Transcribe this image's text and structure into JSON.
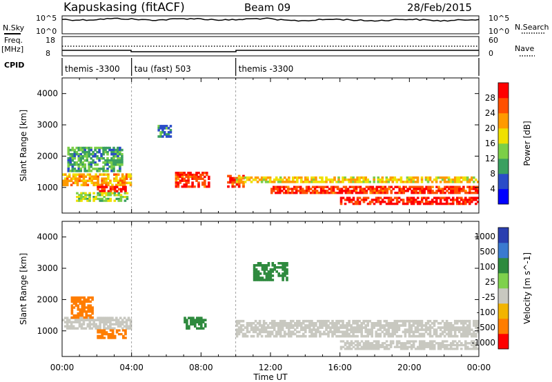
{
  "header": {
    "station": "Kapuskasing (fitACF)",
    "beam": "Beam 09",
    "date": "28/Feb/2015"
  },
  "strips": {
    "nsky_label": "N.Sky",
    "nsky_ticks": [
      "10^5",
      "10^0"
    ],
    "nsky_right_ticks": [
      "10^5",
      "10^0"
    ],
    "nsearch_label": "N.Search",
    "freq_label": "Freq.",
    "freq_unit": "[MHz]",
    "freq_ticks": [
      "18",
      "8"
    ],
    "nave_ticks": [
      "60",
      "0"
    ],
    "nave_label": "Nave",
    "cpid_label": "CPID",
    "cpid_segments": [
      {
        "label": "themis -3300",
        "start_hour": 0,
        "end_hour": 4
      },
      {
        "label": "tau (fast) 503",
        "start_hour": 4,
        "end_hour": 10
      },
      {
        "label": "themis -3300",
        "start_hour": 10,
        "end_hour": 24
      }
    ]
  },
  "colors": {
    "power_scale": [
      "#0000ff",
      "#2a4cc8",
      "#3aa060",
      "#7ccf48",
      "#f0e000",
      "#ff9a00",
      "#ff5000",
      "#ff0000"
    ],
    "velocity_scale": [
      "#2a3fb0",
      "#3a7ad0",
      "#2e8a3e",
      "#7ed14c",
      "#c8c8c0",
      "#f2b400",
      "#ff7d00",
      "#ff0000"
    ]
  },
  "chart_data": [
    {
      "type": "heatmap",
      "title": "",
      "xlabel": "Time UT",
      "ylabel": "Slant Range [km]",
      "xlim": [
        0,
        24
      ],
      "ylim": [
        180,
        4500
      ],
      "x_ticks": [
        "00:00",
        "04:00",
        "08:00",
        "12:00",
        "16:00",
        "20:00",
        "00:00"
      ],
      "y_ticks": [
        1000,
        2000,
        3000,
        4000
      ],
      "colorbar": {
        "label": "Power [dB]",
        "ticks": [
          "4",
          "8",
          "12",
          "16",
          "20",
          "24",
          "28"
        ],
        "range": [
          0,
          30
        ]
      },
      "regions": [
        {
          "t0": 0.0,
          "t1": 4.0,
          "r0": 1050,
          "r1": 1450,
          "value": 20
        },
        {
          "t0": 0.3,
          "t1": 3.5,
          "r0": 1500,
          "r1": 2300,
          "value": 10
        },
        {
          "t0": 2.0,
          "t1": 3.7,
          "r0": 850,
          "r1": 1050,
          "value": 28
        },
        {
          "t0": 0.8,
          "t1": 3.8,
          "r0": 550,
          "r1": 850,
          "value": 14
        },
        {
          "t0": 5.5,
          "t1": 6.3,
          "r0": 2600,
          "r1": 3000,
          "value": 8
        },
        {
          "t0": 6.5,
          "t1": 8.5,
          "r0": 1000,
          "r1": 1500,
          "value": 26
        },
        {
          "t0": 9.5,
          "t1": 10.5,
          "r0": 1000,
          "r1": 1400,
          "value": 26
        },
        {
          "t0": 10.0,
          "t1": 24.0,
          "r0": 1150,
          "r1": 1350,
          "value": 18
        },
        {
          "t0": 12.0,
          "t1": 24.0,
          "r0": 800,
          "r1": 1050,
          "value": 26
        },
        {
          "t0": 16.0,
          "t1": 24.0,
          "r0": 450,
          "r1": 700,
          "value": 28
        }
      ]
    },
    {
      "type": "heatmap",
      "title": "",
      "xlabel": "Time UT",
      "ylabel": "Slant Range [km]",
      "xlim": [
        0,
        24
      ],
      "ylim": [
        180,
        4500
      ],
      "x_ticks": [
        "00:00",
        "04:00",
        "08:00",
        "12:00",
        "16:00",
        "20:00",
        "00:00"
      ],
      "y_ticks": [
        1000,
        2000,
        3000,
        4000
      ],
      "colorbar": {
        "label": "Velocity [m s^-1]",
        "ticks": [
          "1000",
          "500",
          "100",
          "25",
          "-25",
          "-100",
          "-500",
          "-1000"
        ]
      },
      "regions": [
        {
          "t0": 0.0,
          "t1": 4.0,
          "r0": 1050,
          "r1": 1450,
          "value": 0
        },
        {
          "t0": 2.0,
          "t1": 3.7,
          "r0": 750,
          "r1": 1050,
          "value": -300
        },
        {
          "t0": 0.5,
          "t1": 1.8,
          "r0": 1400,
          "r1": 2100,
          "value": -150
        },
        {
          "t0": 7.0,
          "t1": 8.3,
          "r0": 1050,
          "r1": 1450,
          "value": 150
        },
        {
          "t0": 10.0,
          "t1": 24.0,
          "r0": 800,
          "r1": 1350,
          "value": 0
        },
        {
          "t0": 11.0,
          "t1": 13.0,
          "r0": 2600,
          "r1": 3200,
          "value": 150
        },
        {
          "t0": 16.0,
          "t1": 24.0,
          "r0": 400,
          "r1": 700,
          "value": 0
        }
      ]
    }
  ]
}
